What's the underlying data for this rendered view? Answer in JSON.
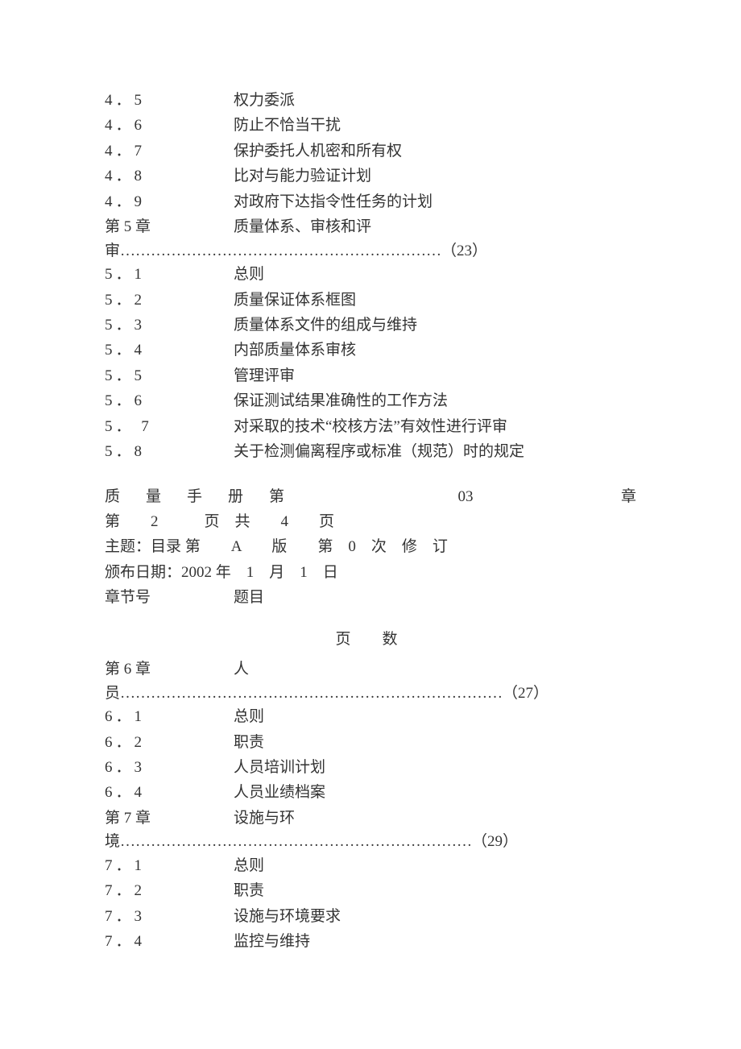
{
  "group1": [
    {
      "num": "4．5",
      "title": "权力委派"
    },
    {
      "num": "4．6",
      "title": "防止不恰当干扰"
    },
    {
      "num": "4．7",
      "title": "保护委托人机密和所有权"
    },
    {
      "num": "4．8",
      "title": "比对与能力验证计划"
    },
    {
      "num": "4．9",
      "title": "对政府下达指令性任务的计划"
    }
  ],
  "chapter5": {
    "label": "第 5 章",
    "title_line1": "质量体系、审核和评",
    "continuation": "审………………………………………………………（23）"
  },
  "group2": [
    {
      "num": "5．1",
      "title": "总则"
    },
    {
      "num": "5．2",
      "title": "质量保证体系框图"
    },
    {
      "num": "5．3",
      "title": "质量体系文件的组成与维持"
    },
    {
      "num": "5．4",
      "title": "内部质量体系审核"
    },
    {
      "num": "5．5",
      "title": "管理评审"
    },
    {
      "num": "5．6",
      "title": "保证测试结果准确性的工作方法"
    },
    {
      "num": "5． 7",
      "title": " 对采取的技术“校核方法”有效性进行评审"
    },
    {
      "num": "5．8",
      "title": "关于检测偏离程序或标准（规范）时的规定"
    }
  ],
  "meta": {
    "line1_left": "质量手册第",
    "line1_mid": "03",
    "line1_right": "章",
    "line2": "第　　2　　　页　共　　4　　页",
    "line3": "主题：目录 第　　A　　版　　第　0　次　修　订",
    "line4": "颁布日期：2002 年　1　月　1　日",
    "line5_left": "章节号",
    "line5_right": "题目"
  },
  "page_num_label": "页　数",
  "chapter6": {
    "label": "第 6 章",
    "title_line1": "人",
    "continuation": "员…………………………………………………………………（27）"
  },
  "group3": [
    {
      "num": "6．1",
      "title": "总则"
    },
    {
      "num": "6．2",
      "title": "职责"
    },
    {
      "num": "6．3",
      "title": "人员培训计划"
    },
    {
      "num": "6．4",
      "title": "人员业绩档案"
    }
  ],
  "chapter7": {
    "label": "第 7 章",
    "title_line1": "设施与环",
    "continuation": "境……………………………………………………………（29）"
  },
  "group4": [
    {
      "num": "7．1",
      "title": "总则"
    },
    {
      "num": "7．2",
      "title": "职责"
    },
    {
      "num": "7．3",
      "title": "设施与环境要求"
    },
    {
      "num": "7．4",
      "title": "监控与维持"
    }
  ]
}
